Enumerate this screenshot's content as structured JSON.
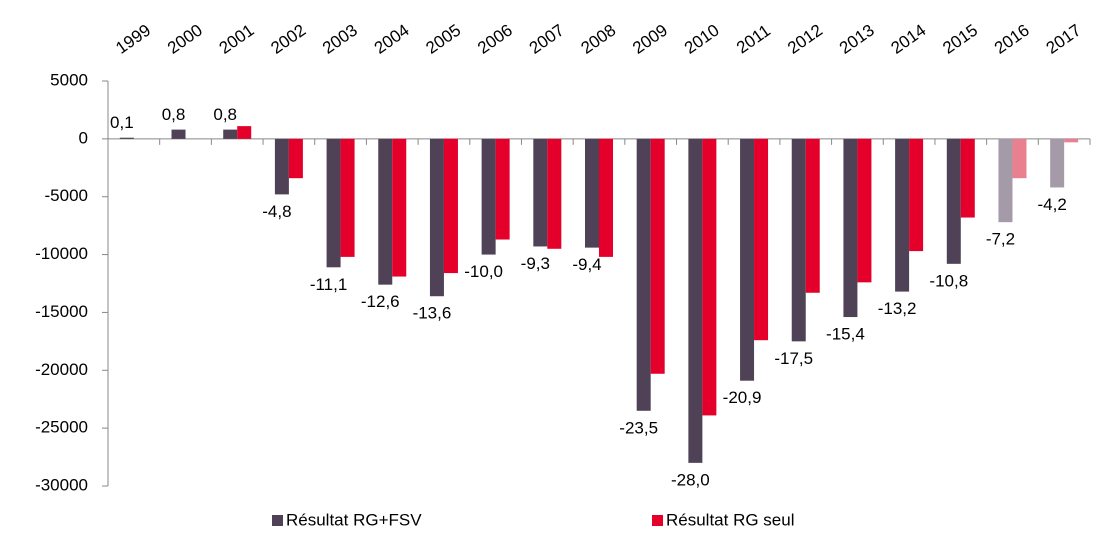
{
  "chart_data": {
    "type": "bar",
    "categories": [
      "1999",
      "2000",
      "2001",
      "2002",
      "2003",
      "2004",
      "2005",
      "2006",
      "2007",
      "2008",
      "2009",
      "2010",
      "2011",
      "2012",
      "2013",
      "2014",
      "2015",
      "2016",
      "2017"
    ],
    "series": [
      {
        "name": "Résultat RG+FSV",
        "color": "#4f4257",
        "colors": [
          "#4f4257",
          "#4f4257",
          "#4f4257",
          "#4f4257",
          "#4f4257",
          "#4f4257",
          "#4f4257",
          "#4f4257",
          "#4f4257",
          "#4f4257",
          "#4f4257",
          "#4f4257",
          "#4f4257",
          "#4f4257",
          "#4f4257",
          "#4f4257",
          "#4f4257",
          "#a59aa8",
          "#a59aa8"
        ],
        "values": [
          100,
          800,
          800,
          -4800,
          -11100,
          -12600,
          -13600,
          -10000,
          -9300,
          -9400,
          -23500,
          -28000,
          -20900,
          -17500,
          -15400,
          -13200,
          -10800,
          -7200,
          -4200
        ],
        "value_labels": [
          "0,1",
          "0,8",
          "0,8",
          "-4,8",
          "-11,1",
          "-12,6",
          "-13,6",
          "-10,0",
          "-9,3",
          "-9,4",
          "-23,5",
          "-28,0",
          "-20,9",
          "-17,5",
          "-15,4",
          "-13,2",
          "-10,8",
          "-7,2",
          "-4,2"
        ]
      },
      {
        "name": "Résultat RG seul",
        "color": "#e4002b",
        "colors": [
          "#e4002b",
          "#e4002b",
          "#e4002b",
          "#e4002b",
          "#e4002b",
          "#e4002b",
          "#e4002b",
          "#e4002b",
          "#e4002b",
          "#e4002b",
          "#e4002b",
          "#e4002b",
          "#e4002b",
          "#e4002b",
          "#e4002b",
          "#e4002b",
          "#e4002b",
          "#e8808f",
          "#e8808f"
        ],
        "values": [
          null,
          null,
          1100,
          -3400,
          -10200,
          -11900,
          -11600,
          -8700,
          -9500,
          -10200,
          -20300,
          -23900,
          -17400,
          -13300,
          -12400,
          -9700,
          -6800,
          -3400,
          -300
        ]
      }
    ],
    "ylim": [
      -30000,
      5000
    ],
    "yticks": [
      5000,
      0,
      -5000,
      -10000,
      -15000,
      -20000,
      -25000,
      -30000
    ]
  }
}
